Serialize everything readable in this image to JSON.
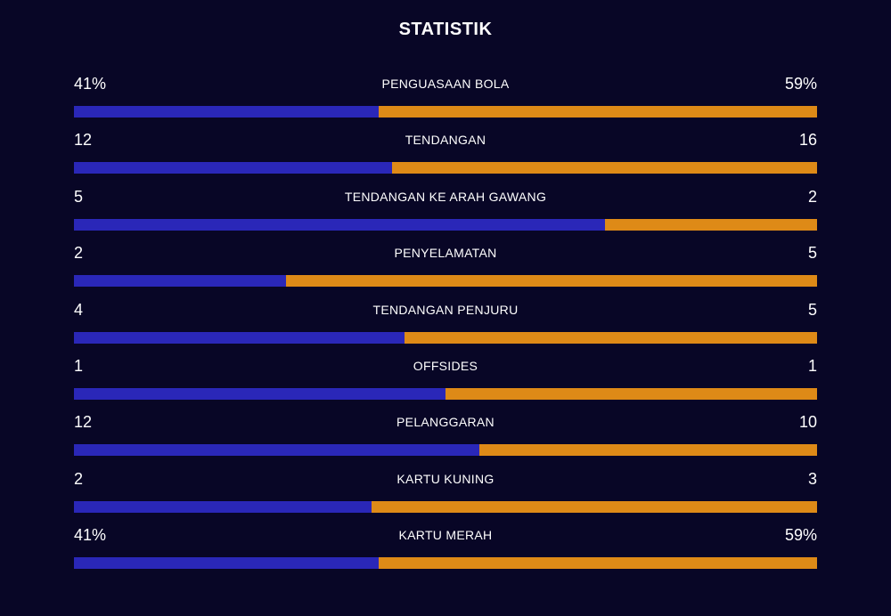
{
  "title": "STATISTIK",
  "colors": {
    "home": "#2a27b8",
    "away": "#de8a17",
    "background": "#080626"
  },
  "chart_data": {
    "type": "bar",
    "orientation": "horizontal-stacked-comparison",
    "title": "STATISTIK",
    "rows": [
      {
        "label": "PENGUASAAN BOLA",
        "home_display": "41%",
        "away_display": "59%",
        "home": 41,
        "away": 59
      },
      {
        "label": "TENDANGAN",
        "home_display": "12",
        "away_display": "16",
        "home": 12,
        "away": 16
      },
      {
        "label": "TENDANGAN KE ARAH GAWANG",
        "home_display": "5",
        "away_display": "2",
        "home": 5,
        "away": 2
      },
      {
        "label": "PENYELAMATAN",
        "home_display": "2",
        "away_display": "5",
        "home": 2,
        "away": 5
      },
      {
        "label": "TENDANGAN PENJURU",
        "home_display": "4",
        "away_display": "5",
        "home": 4,
        "away": 5
      },
      {
        "label": "OFFSIDES",
        "home_display": "1",
        "away_display": "1",
        "home": 1,
        "away": 1
      },
      {
        "label": "PELANGGARAN",
        "home_display": "12",
        "away_display": "10",
        "home": 12,
        "away": 10
      },
      {
        "label": "KARTU KUNING",
        "home_display": "2",
        "away_display": "3",
        "home": 2,
        "away": 3
      },
      {
        "label": "KARTU MERAH",
        "home_display": "41%",
        "away_display": "59%",
        "home": 41,
        "away": 59
      }
    ]
  }
}
